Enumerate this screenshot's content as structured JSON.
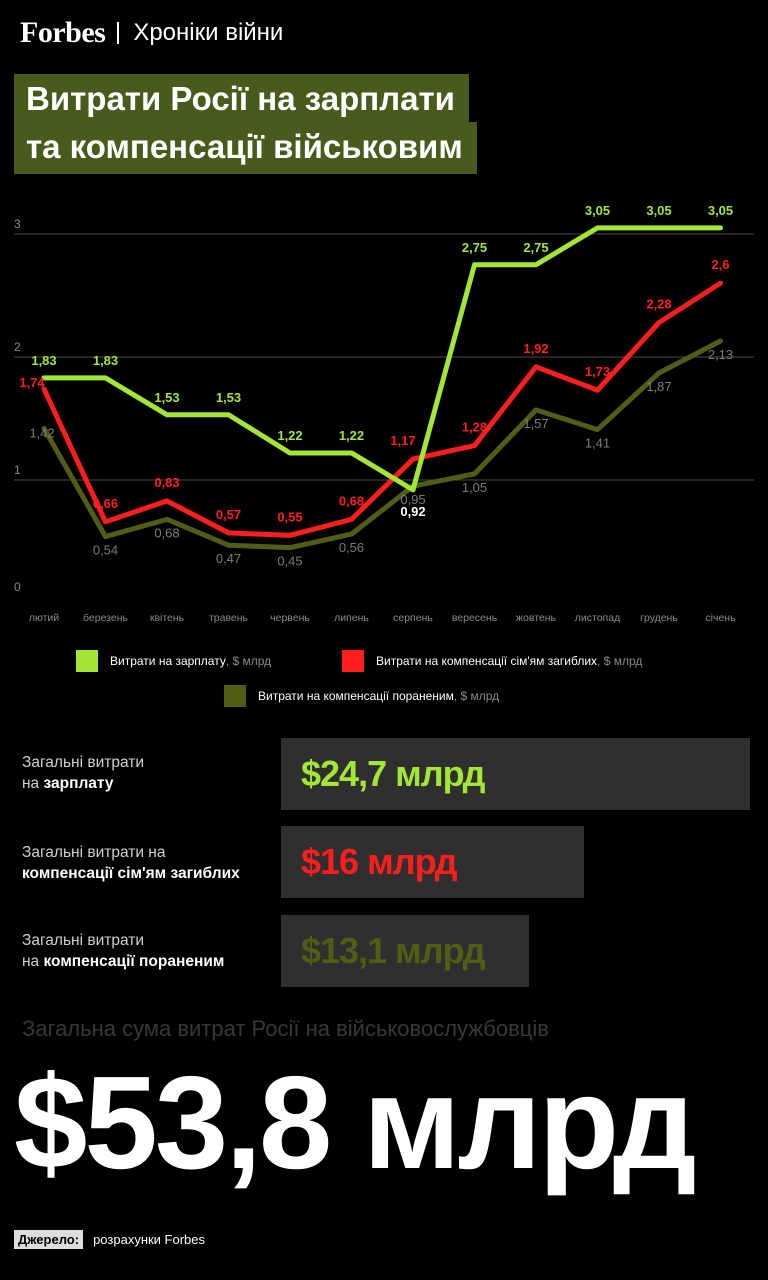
{
  "header": {
    "logo": "Forbes",
    "section": "Хроніки війни"
  },
  "title_lines": [
    "Витрати Росії на зарплати",
    "та компенсації військовим"
  ],
  "chart_data": {
    "type": "line",
    "categories": [
      "лютий",
      "березень",
      "квітень",
      "травень",
      "червень",
      "липень",
      "серпень",
      "вересень",
      "жовтень",
      "листопад",
      "грудень",
      "січень"
    ],
    "ylim": [
      0,
      3
    ],
    "yticks": [
      "0",
      "1",
      "2",
      "3"
    ],
    "grid": true,
    "legend_position": "bottom",
    "series": [
      {
        "name": "Витрати на зарплату",
        "unit": ", $ млрд",
        "color": "#a3e635",
        "values": [
          1.83,
          1.83,
          1.53,
          1.53,
          1.22,
          1.22,
          0.92,
          2.75,
          2.75,
          3.05,
          3.05,
          3.05
        ],
        "labels": [
          "1,83",
          "1,83",
          "1,53",
          "1,53",
          "1,22",
          "1,22",
          "0,92",
          "2,75",
          "2,75",
          "3,05",
          "3,05",
          "3,05"
        ]
      },
      {
        "name": "Витрати на компенсації сім'ям загиблих",
        "unit": ", $ млрд",
        "color": "#ff1e1e",
        "values": [
          1.74,
          0.66,
          0.83,
          0.57,
          0.55,
          0.68,
          1.17,
          1.28,
          1.92,
          1.73,
          2.28,
          2.6
        ],
        "labels": [
          "1,74",
          "0,66",
          "0,83",
          "0,57",
          "0,55",
          "0,68",
          "1,17",
          "1,28",
          "1,92",
          "1,73",
          "2,28",
          "2,6"
        ]
      },
      {
        "name": "Витрати на компенсації пораненим",
        "unit": ", $ млрд",
        "color": "#4f5e14",
        "values": [
          1.42,
          0.54,
          0.68,
          0.47,
          0.45,
          0.56,
          0.95,
          1.05,
          1.57,
          1.41,
          1.87,
          2.13
        ],
        "labels": [
          "1,42",
          "0,54",
          "0,68",
          "0,47",
          "0,45",
          "0,56",
          "0,95",
          "1,05",
          "1,57",
          "1,41",
          "1,87",
          "2,13"
        ]
      }
    ]
  },
  "totals": [
    {
      "label_pre": "Загальні витрати",
      "label_mid": "на ",
      "label_bold": "зарплату",
      "value": "$24,7 млрд",
      "color": "#a3e635"
    },
    {
      "label_pre": "Загальні витрати на",
      "label_mid": "",
      "label_bold": "компенсації сім'ям загиблих",
      "value": "$16 млрд",
      "color": "#ff1e1e"
    },
    {
      "label_pre": "Загальні витрати",
      "label_mid": "на ",
      "label_bold": "компенсації пораненим",
      "value": "$13,1 млрд",
      "color": "#4f5e14"
    }
  ],
  "grand_total": {
    "label": "Загальна сума витрат Росії на військовослужбовців",
    "value": "$53,8 млрд"
  },
  "source": {
    "tag": "Джерело:",
    "text": "розрахунки Forbes"
  }
}
